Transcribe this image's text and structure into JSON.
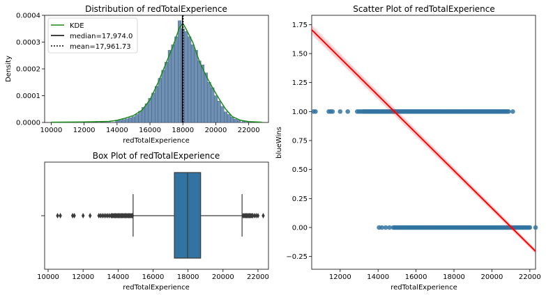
{
  "figure": {
    "background": "#ffffff"
  },
  "chart_data": [
    {
      "id": "hist",
      "type": "bar",
      "title": "Distribution of redTotalExperience",
      "xlabel": "redTotalExperience",
      "ylabel": "Density",
      "xlim": [
        9600,
        23200
      ],
      "ylim": [
        0,
        0.0004
      ],
      "xticks": [
        10000,
        12000,
        14000,
        16000,
        18000,
        20000,
        22000
      ],
      "xtick_labels": [
        "10000",
        "12000",
        "14000",
        "16000",
        "18000",
        "20000",
        "22000"
      ],
      "yticks": [
        0,
        0.0001,
        0.0002,
        0.0003,
        0.0004
      ],
      "ytick_labels": [
        "0.0000",
        "0.0001",
        "0.0002",
        "0.0003",
        "0.0004"
      ],
      "bar_color": "#6f8fb3",
      "bar_edge": "#1f3f6a",
      "bins": [
        [
          10000,
          1e-06
        ],
        [
          10600,
          1e-06
        ],
        [
          11400,
          1e-06
        ],
        [
          12200,
          1e-06
        ],
        [
          12900,
          2e-06
        ],
        [
          13500,
          3e-06
        ],
        [
          14000,
          6e-06
        ],
        [
          14200,
          8e-06
        ],
        [
          14400,
          1.1e-05
        ],
        [
          14600,
          1.4e-05
        ],
        [
          14800,
          1.8e-05
        ],
        [
          15000,
          2.2e-05
        ],
        [
          15200,
          3e-05
        ],
        [
          15400,
          4.2e-05
        ],
        [
          15600,
          5.6e-05
        ],
        [
          15800,
          7e-05
        ],
        [
          16000,
          9e-05
        ],
        [
          16200,
          0.00011
        ],
        [
          16400,
          0.000135
        ],
        [
          16600,
          0.000165
        ],
        [
          16800,
          0.000195
        ],
        [
          17000,
          0.000225
        ],
        [
          17200,
          0.00027
        ],
        [
          17400,
          0.00029
        ],
        [
          17600,
          0.00032
        ],
        [
          17800,
          0.00038
        ],
        [
          18000,
          0.00035
        ],
        [
          18200,
          0.00034
        ],
        [
          18400,
          0.00032
        ],
        [
          18600,
          0.00029
        ],
        [
          18800,
          0.00027
        ],
        [
          19000,
          0.00023
        ],
        [
          19200,
          0.000215
        ],
        [
          19400,
          0.000185
        ],
        [
          19600,
          0.00015
        ],
        [
          19800,
          0.00013
        ],
        [
          20000,
          0.0001
        ],
        [
          20200,
          8e-05
        ],
        [
          20400,
          6e-05
        ],
        [
          20600,
          4e-05
        ],
        [
          20800,
          3e-05
        ],
        [
          21000,
          2e-05
        ],
        [
          21200,
          1.2e-05
        ],
        [
          21400,
          8e-06
        ],
        [
          21700,
          4e-06
        ],
        [
          22000,
          2e-06
        ],
        [
          22400,
          1e-06
        ]
      ],
      "bin_width": 200,
      "kde": {
        "name": "KDE",
        "color": "#1a8a1a",
        "x": [
          10000,
          12000,
          13500,
          14000,
          14500,
          15000,
          15500,
          16000,
          16500,
          17000,
          17400,
          17800,
          18000,
          18200,
          18600,
          19000,
          19400,
          19800,
          20200,
          20600,
          21000,
          21500,
          22000,
          22800
        ],
        "y": [
          1e-06,
          2e-06,
          4e-06,
          8e-06,
          1.6e-05,
          2.6e-05,
          4.5e-05,
          8.5e-05,
          0.00015,
          0.000225,
          0.000285,
          0.000355,
          0.00037,
          0.000348,
          0.0003,
          0.000228,
          0.000175,
          0.00013,
          8.8e-05,
          5e-05,
          2.2e-05,
          8e-06,
          3e-06,
          1e-06
        ]
      },
      "median": {
        "label": "median=17,974.0",
        "value": 17974.0,
        "color": "#000000"
      },
      "mean": {
        "label": "mean=17,961.73",
        "value": 17961.73,
        "color": "#000000"
      },
      "legend_position": "top-left"
    },
    {
      "id": "box",
      "type": "box",
      "title": "Box Plot of redTotalExperience",
      "xlabel": "redTotalExperience",
      "xlim": [
        9800,
        22600
      ],
      "xticks": [
        10000,
        12000,
        14000,
        16000,
        18000,
        20000,
        22000
      ],
      "xtick_labels": [
        "10000",
        "12000",
        "14000",
        "16000",
        "18000",
        "20000",
        "22000"
      ],
      "box_color": "#3274a1",
      "q1": 17220,
      "median": 17974,
      "q3": 18720,
      "whisker_low": 14860,
      "whisker_high": 21090,
      "outliers": [
        10540,
        10700,
        11400,
        11500,
        12000,
        12400,
        12900,
        13000,
        13100,
        13200,
        13300,
        13400,
        13500,
        13600,
        13650,
        13700,
        13750,
        13800,
        13850,
        13900,
        13950,
        14000,
        14050,
        14100,
        14150,
        14200,
        14250,
        14300,
        14350,
        14400,
        14450,
        14500,
        14550,
        14600,
        14650,
        14700,
        14750,
        14800,
        14830,
        21150,
        21200,
        21250,
        21300,
        21350,
        21400,
        21450,
        21500,
        21550,
        21600,
        21650,
        21700,
        21800,
        21900,
        22000,
        22300
      ]
    },
    {
      "id": "scatter",
      "type": "scatter",
      "title": "Scatter Plot of redTotalExperience",
      "xlabel": "redTotalExperience",
      "ylabel": "blueWins",
      "xlim": [
        10500,
        22300
      ],
      "ylim": [
        -0.36,
        1.83
      ],
      "xticks": [
        12000,
        14000,
        16000,
        18000,
        20000,
        22000
      ],
      "xtick_labels": [
        "12000",
        "14000",
        "16000",
        "18000",
        "20000",
        "22000"
      ],
      "yticks": [
        -0.25,
        0.0,
        0.25,
        0.5,
        0.75,
        1.0,
        1.25,
        1.5,
        1.75
      ],
      "ytick_labels": [
        "−0.25",
        "0.00",
        "0.25",
        "0.50",
        "0.75",
        "1.00",
        "1.25",
        "1.50",
        "1.75"
      ],
      "point_color": "#3274a1",
      "points_y1_sparse": [
        10600,
        10700,
        11400,
        11500,
        11600,
        12000,
        12400,
        12900,
        13000,
        13100
      ],
      "points_y1_dense_range": [
        13200,
        20900
      ],
      "points_y1_extra": [
        21100
      ],
      "points_y0_sparse": [
        14050,
        14200,
        14400,
        14600
      ],
      "points_y0_dense_range": [
        14800,
        22000
      ],
      "points_y0_extra": [
        22300
      ],
      "regression": {
        "color": "#ff0000",
        "x": [
          10500,
          22300
        ],
        "y": [
          1.705,
          -0.205
        ],
        "ci": 0.02
      }
    }
  ]
}
